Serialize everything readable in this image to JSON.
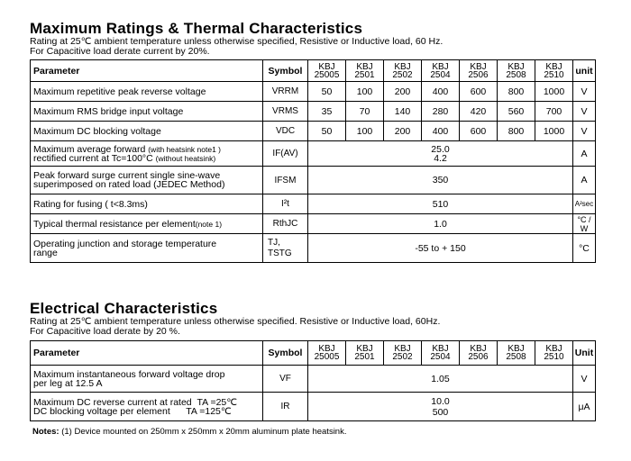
{
  "maximum": {
    "title": "Maximum Ratings & Thermal Characteristics",
    "subtitle1": "Rating at 25℃ ambient temperature unless otherwise specified, Resistive or Inductive load, 60 Hz.",
    "subtitle2": "For Capacitive load derate current by 20%.",
    "header": {
      "parameter": "Parameter",
      "symbol": "Symbol",
      "unit": "unit",
      "columns": [
        {
          "top": "KBJ",
          "bottom": "25005"
        },
        {
          "top": "KBJ",
          "bottom": "2501"
        },
        {
          "top": "KBJ",
          "bottom": "2502"
        },
        {
          "top": "KBJ",
          "bottom": "2504"
        },
        {
          "top": "KBJ",
          "bottom": "2506"
        },
        {
          "top": "KBJ",
          "bottom": "2508"
        },
        {
          "top": "KBJ",
          "bottom": "2510"
        }
      ]
    },
    "rows": {
      "vrrm": {
        "param": "Maximum repetitive peak reverse voltage",
        "symbol": "VRRM",
        "values": [
          "50",
          "100",
          "200",
          "400",
          "600",
          "800",
          "1000"
        ],
        "unit": "V"
      },
      "vrms": {
        "param": "Maximum RMS bridge input voltage",
        "symbol": "VRMS",
        "values": [
          "35",
          "70",
          "140",
          "280",
          "420",
          "560",
          "700"
        ],
        "unit": "V"
      },
      "vdc": {
        "param": "Maximum DC blocking voltage",
        "symbol": "VDC",
        "values": [
          "50",
          "100",
          "200",
          "400",
          "600",
          "800",
          "1000"
        ],
        "unit": "V"
      },
      "ifav": {
        "param_line1": "Maximum average forward",
        "param_line1_note": "(with heatsink note1 )",
        "param_line2": "rectified current at Tc=100°C",
        "param_line2_note": "(without heatsink)",
        "symbol": "IF(AV)",
        "value1": "25.0",
        "value2": "4.2",
        "unit": "A"
      },
      "ifsm": {
        "param_line1": "Peak forward surge current single sine-wave",
        "param_line2": "superimposed on rated load (JEDEC Method)",
        "symbol": "IFSM",
        "value": "350",
        "unit": "A"
      },
      "i2t": {
        "param": "Rating for fusing ( t<8.3ms)",
        "symbol": "I²t",
        "value": "510",
        "unit": "A²sec"
      },
      "rthjc": {
        "param": "Typical  thermal resistance per element",
        "param_note": "(note 1)",
        "symbol": "RthJC",
        "value": "1.0",
        "unit": "°C / W"
      },
      "temp": {
        "param_line1": "Operating junction and storage temperature",
        "param_line2": "range",
        "symbol_line1": "TJ,",
        "symbol_line2": "TSTG",
        "value": "-55 to + 150",
        "unit": "°C"
      }
    }
  },
  "electrical": {
    "title": "Electrical Characteristics",
    "subtitle1": "Rating at 25℃ ambient temperature unless otherwise specified. Resistive or Inductive load, 60Hz.",
    "subtitle2": "For Capacitive load derate by 20 %.",
    "header": {
      "parameter": "Parameter",
      "symbol": "Symbol",
      "unit": "Unit"
    },
    "rows": {
      "vf": {
        "param_line1": "Maximum instantaneous forward voltage drop",
        "param_line2": "per leg at 12.5 A",
        "symbol": "VF",
        "value": "1.05",
        "unit": "V"
      },
      "ir": {
        "param_line1": "Maximum DC reverse current at rated",
        "param_line1_cond": "TA =25℃",
        "param_line2": "DC blocking voltage per element",
        "param_line2_cond": "TA =125℃",
        "symbol": "IR",
        "value1": "10.0",
        "value2": "500",
        "unit": "μA"
      }
    }
  },
  "note": {
    "label": "Notes:",
    "text": "(1) Device mounted on 250mm x 250mm x 20mm aluminum plate heatsink."
  }
}
